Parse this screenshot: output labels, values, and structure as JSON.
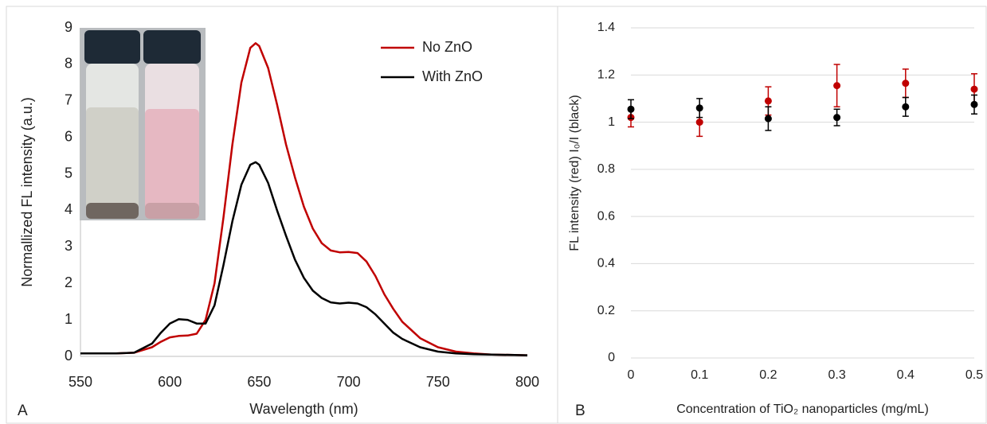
{
  "chart_data": [
    {
      "type": "line",
      "panel_label": "A",
      "xlabel": "Wavelength (nm)",
      "ylabel": "Normallized  FL intensity (a.u.)",
      "xlim": [
        550,
        800
      ],
      "xticks": [
        550,
        600,
        650,
        700,
        750,
        800
      ],
      "ylim": [
        0,
        9
      ],
      "yticks": [
        0,
        1,
        2,
        3,
        4,
        5,
        6,
        7,
        8,
        9
      ],
      "legend": "upper right",
      "x": [
        550,
        570,
        580,
        590,
        595,
        600,
        605,
        610,
        615,
        620,
        625,
        630,
        635,
        640,
        645,
        648,
        650,
        655,
        660,
        665,
        670,
        675,
        680,
        685,
        690,
        695,
        700,
        705,
        710,
        715,
        720,
        725,
        730,
        740,
        750,
        760,
        770,
        780,
        800
      ],
      "series": [
        {
          "name": "No ZnO",
          "color": "#c00000",
          "values": [
            0.08,
            0.08,
            0.1,
            0.25,
            0.4,
            0.52,
            0.56,
            0.57,
            0.62,
            1.0,
            2.0,
            3.8,
            5.8,
            7.5,
            8.45,
            8.58,
            8.5,
            7.9,
            6.9,
            5.8,
            4.9,
            4.1,
            3.5,
            3.1,
            2.9,
            2.85,
            2.86,
            2.83,
            2.6,
            2.2,
            1.7,
            1.3,
            0.95,
            0.5,
            0.25,
            0.13,
            0.08,
            0.05,
            0.03
          ]
        },
        {
          "name": "With ZnO",
          "color": "#000000",
          "values": [
            0.08,
            0.08,
            0.1,
            0.35,
            0.65,
            0.9,
            1.02,
            1.0,
            0.9,
            0.9,
            1.4,
            2.5,
            3.7,
            4.7,
            5.25,
            5.32,
            5.25,
            4.75,
            4.0,
            3.3,
            2.65,
            2.15,
            1.8,
            1.6,
            1.48,
            1.45,
            1.47,
            1.45,
            1.35,
            1.15,
            0.9,
            0.65,
            0.48,
            0.25,
            0.13,
            0.08,
            0.06,
            0.05,
            0.03
          ]
        }
      ]
    },
    {
      "type": "scatter",
      "panel_label": "B",
      "xlabel": "Concentration of TiO₂ nanoparticles (mg/mL)",
      "ylabel": "FL intensity (red)     I₀/I (black)",
      "xlim": [
        0,
        0.5
      ],
      "xticks": [
        0,
        0.1,
        0.2,
        0.3,
        0.4,
        0.5
      ],
      "ylim": [
        0,
        1.4
      ],
      "yticks": [
        0,
        0.2,
        0.4,
        0.6,
        0.8,
        1,
        1.2,
        1.4
      ],
      "grid": true,
      "x": [
        0,
        0.1,
        0.2,
        0.3,
        0.4,
        0.5
      ],
      "series": [
        {
          "color": "#c00000",
          "values": [
            1.02,
            1.0,
            1.09,
            1.155,
            1.165,
            1.14
          ],
          "errors": [
            0.04,
            0.06,
            0.06,
            0.09,
            0.06,
            0.065
          ]
        },
        {
          "color": "#000000",
          "values": [
            1.055,
            1.06,
            1.015,
            1.02,
            1.065,
            1.075
          ],
          "errors": [
            0.04,
            0.04,
            0.05,
            0.035,
            0.04,
            0.04
          ]
        }
      ]
    }
  ]
}
